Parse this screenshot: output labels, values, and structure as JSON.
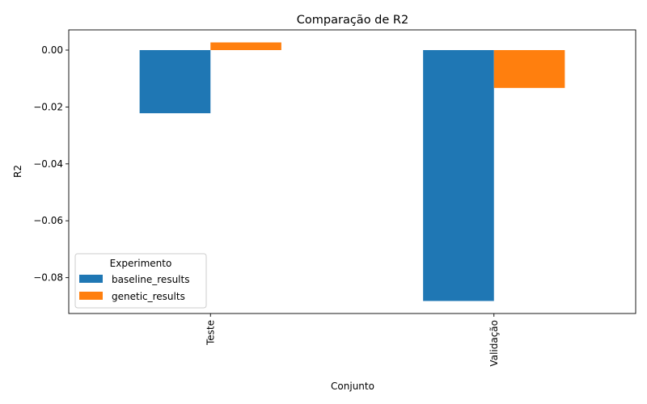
{
  "chart_data": {
    "type": "bar",
    "title": "Comparação de R2",
    "xlabel": "Conjunto",
    "ylabel": "R2",
    "categories": [
      "Teste",
      "Validação"
    ],
    "series": [
      {
        "name": "baseline_results",
        "values": [
          -0.0222,
          -0.0882
        ],
        "color": "#1f77b4"
      },
      {
        "name": "genetic_results",
        "values": [
          0.0027,
          -0.0133
        ],
        "color": "#ff7f0e"
      }
    ],
    "ylim": [
      -0.0926,
      0.0071
    ],
    "yticks": [
      0.0,
      -0.02,
      -0.04,
      -0.06,
      -0.08
    ],
    "ytick_labels": [
      "0.00",
      "−0.02",
      "−0.04",
      "−0.06",
      "−0.08"
    ],
    "legend": {
      "title": "Experimento",
      "position": "lower-left"
    },
    "grid": false
  }
}
